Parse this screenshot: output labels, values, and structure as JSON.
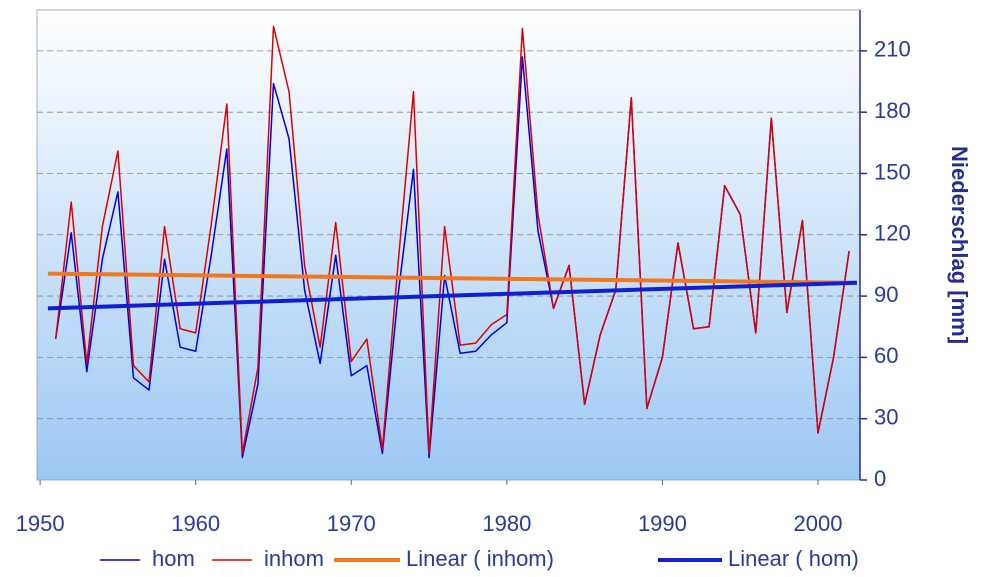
{
  "chart_data": {
    "type": "line",
    "y_label": "Niederschlag [mm]",
    "x": [
      1951,
      1952,
      1953,
      1954,
      1955,
      1956,
      1957,
      1958,
      1959,
      1960,
      1961,
      1962,
      1963,
      1964,
      1965,
      1966,
      1967,
      1968,
      1969,
      1970,
      1971,
      1972,
      1973,
      1974,
      1975,
      1976,
      1977,
      1978,
      1979,
      1980,
      1981,
      1982,
      1983,
      1984,
      1985,
      1986,
      1987,
      1988,
      1989,
      1990,
      1991,
      1992,
      1993,
      1994,
      1995,
      1996,
      1997,
      1998,
      1999,
      2000,
      2001,
      2002
    ],
    "series": [
      {
        "name": "hom",
        "color": "#0000dd",
        "width": 1.5,
        "values": [
          69,
          121,
          53,
          108,
          141,
          50,
          44,
          108,
          65,
          63,
          110,
          162,
          11,
          47,
          194,
          167,
          93,
          57,
          110,
          51,
          56,
          13,
          90,
          152,
          11,
          100,
          62,
          63,
          71,
          77,
          207,
          122,
          84,
          105,
          37,
          71,
          93,
          187,
          35,
          60,
          116,
          74,
          75,
          144,
          130,
          72,
          177,
          82,
          127,
          23,
          60,
          112
        ]
      },
      {
        "name": "inhom",
        "color": "#dd0000",
        "width": 1.5,
        "values": [
          69,
          136,
          57,
          124,
          161,
          56,
          48,
          124,
          74,
          72,
          125,
          184,
          13,
          55,
          222,
          190,
          105,
          65,
          126,
          58,
          69,
          15,
          105,
          190,
          13,
          124,
          66,
          67,
          76,
          81,
          221,
          130,
          84,
          105,
          37,
          71,
          93,
          187,
          35,
          60,
          116,
          74,
          75,
          144,
          130,
          72,
          177,
          82,
          127,
          23,
          60,
          112
        ]
      },
      {
        "name": "Linear ( inhom)",
        "color": "#f07820",
        "width": 4,
        "x": [
          1950.5,
          2002.5
        ],
        "values": [
          101,
          96.5
        ]
      },
      {
        "name": "Linear ( hom)",
        "color": "#1020d0",
        "width": 4,
        "x": [
          1950.5,
          2002.5
        ],
        "values": [
          84,
          96.5
        ]
      }
    ],
    "xlim": [
      1949.8,
      2002.7
    ],
    "xticks": [
      1950,
      1960,
      1970,
      1980,
      1990,
      2000
    ],
    "ylim": [
      0,
      230
    ],
    "yticks": [
      0,
      30,
      60,
      90,
      120,
      150,
      180,
      210
    ],
    "grid": true
  }
}
